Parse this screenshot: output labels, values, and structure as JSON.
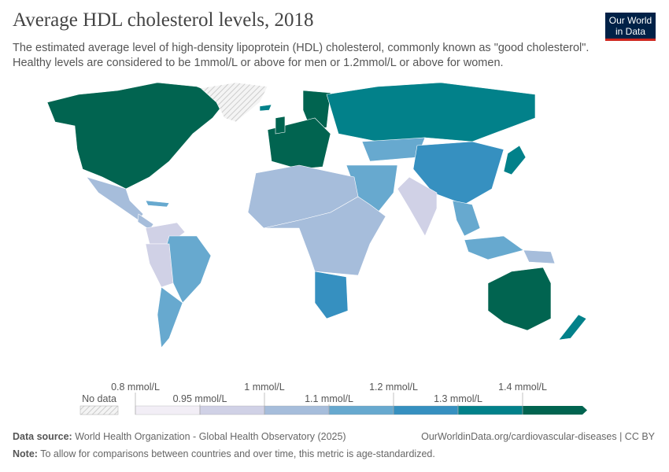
{
  "header": {
    "title": "Average HDL cholesterol levels, 2018",
    "subtitle": "The estimated average level of high-density lipoprotein (HDL) cholesterol, commonly known as \"good cholesterol\". Healthy levels are considered to be 1mmol/L or above for men or 1.2mmol/L or above for women.",
    "logo": "Our World in Data"
  },
  "legend": {
    "no_data": "No data",
    "ticks": [
      "0.8 mmol/L",
      "0.95 mmol/L",
      "1 mmol/L",
      "1.1 mmol/L",
      "1.2 mmol/L",
      "1.3 mmol/L",
      "1.4 mmol/L"
    ],
    "colors": [
      "#f2eef6",
      "#d0d1e6",
      "#a6bddb",
      "#67a9cf",
      "#3690c0",
      "#02818a",
      "#016450"
    ]
  },
  "footer": {
    "source_label": "Data source:",
    "source": "World Health Organization - Global Health Observatory (2025)",
    "link": "OurWorldinData.org/cardiovascular-diseases | CC BY",
    "note_label": "Note:",
    "note": "To allow for comparisons between countries and over time, this metric is age-standardized."
  }
}
